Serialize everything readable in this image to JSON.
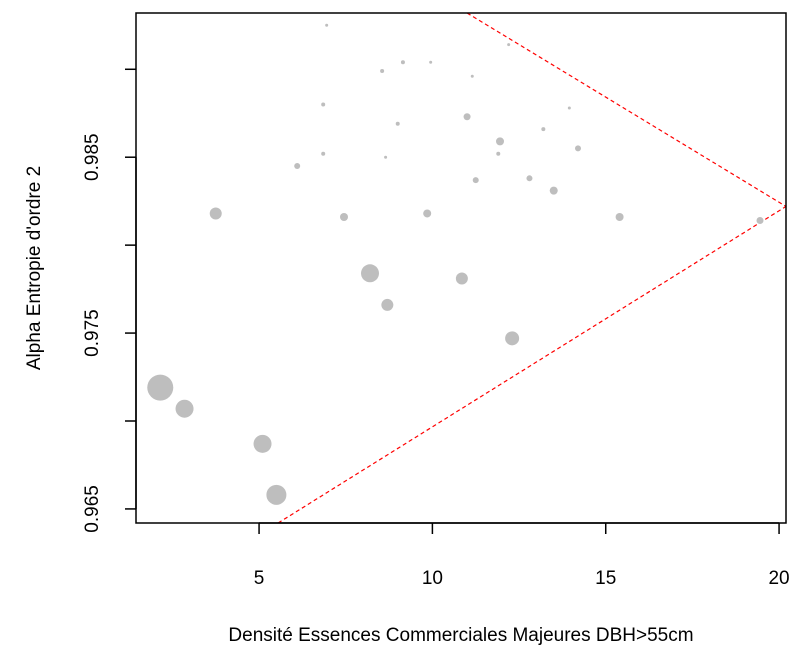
{
  "chart_data": {
    "type": "scatter",
    "title": "",
    "xlabel": "Densité Essences Commerciales Majeures DBH>55cm",
    "ylabel": "Alpha Entropie d'ordre 2",
    "xlim": [
      1.45,
      20.2
    ],
    "ylim": [
      0.9642,
      0.9932
    ],
    "xticks": [
      {
        "value": 5,
        "label": "5"
      },
      {
        "value": 10,
        "label": "10"
      },
      {
        "value": 15,
        "label": "15"
      },
      {
        "value": 20,
        "label": "20"
      }
    ],
    "yticks": [
      {
        "value": 0.965,
        "label": "0.965"
      },
      {
        "value": 0.975,
        "label": "0.975"
      },
      {
        "value": 0.985,
        "label": "0.985"
      }
    ],
    "grid": false,
    "point_color": "#bebebe",
    "line_color": "#ff0000",
    "points": [
      {
        "x": 2.15,
        "y": 0.9719,
        "size": 13
      },
      {
        "x": 2.85,
        "y": 0.9707,
        "size": 9
      },
      {
        "x": 5.1,
        "y": 0.9687,
        "size": 9
      },
      {
        "x": 5.5,
        "y": 0.9658,
        "size": 10
      },
      {
        "x": 3.75,
        "y": 0.9818,
        "size": 6
      },
      {
        "x": 8.2,
        "y": 0.9784,
        "size": 9
      },
      {
        "x": 8.7,
        "y": 0.9766,
        "size": 6
      },
      {
        "x": 10.85,
        "y": 0.9781,
        "size": 6
      },
      {
        "x": 12.3,
        "y": 0.9747,
        "size": 7
      },
      {
        "x": 7.45,
        "y": 0.9816,
        "size": 4
      },
      {
        "x": 9.85,
        "y": 0.9818,
        "size": 4
      },
      {
        "x": 15.4,
        "y": 0.9816,
        "size": 4
      },
      {
        "x": 19.45,
        "y": 0.9814,
        "size": 3.5
      },
      {
        "x": 13.5,
        "y": 0.9831,
        "size": 4
      },
      {
        "x": 11.25,
        "y": 0.9837,
        "size": 3
      },
      {
        "x": 12.8,
        "y": 0.9838,
        "size": 3
      },
      {
        "x": 6.1,
        "y": 0.9845,
        "size": 3
      },
      {
        "x": 11.95,
        "y": 0.9859,
        "size": 4
      },
      {
        "x": 14.2,
        "y": 0.9855,
        "size": 3
      },
      {
        "x": 11.0,
        "y": 0.9873,
        "size": 3.5
      },
      {
        "x": 11.9,
        "y": 0.9852,
        "size": 2
      },
      {
        "x": 6.85,
        "y": 0.9852,
        "size": 2
      },
      {
        "x": 8.65,
        "y": 0.985,
        "size": 1.5
      },
      {
        "x": 9.0,
        "y": 0.9869,
        "size": 2
      },
      {
        "x": 13.2,
        "y": 0.9866,
        "size": 2
      },
      {
        "x": 13.95,
        "y": 0.9878,
        "size": 1.5
      },
      {
        "x": 6.85,
        "y": 0.988,
        "size": 2
      },
      {
        "x": 8.55,
        "y": 0.9899,
        "size": 2
      },
      {
        "x": 9.15,
        "y": 0.9904,
        "size": 2
      },
      {
        "x": 9.95,
        "y": 0.9904,
        "size": 1.5
      },
      {
        "x": 11.15,
        "y": 0.9896,
        "size": 1.5
      },
      {
        "x": 12.2,
        "y": 0.9914,
        "size": 1.5
      },
      {
        "x": 6.95,
        "y": 0.9925,
        "size": 1.5
      }
    ],
    "boundary_lines": [
      {
        "x1": 5.55,
        "y1": 0.9642,
        "x2": 20.2,
        "y2": 0.9822
      },
      {
        "x1": 11.0,
        "y1": 0.9932,
        "x2": 20.2,
        "y2": 0.9822
      }
    ]
  }
}
